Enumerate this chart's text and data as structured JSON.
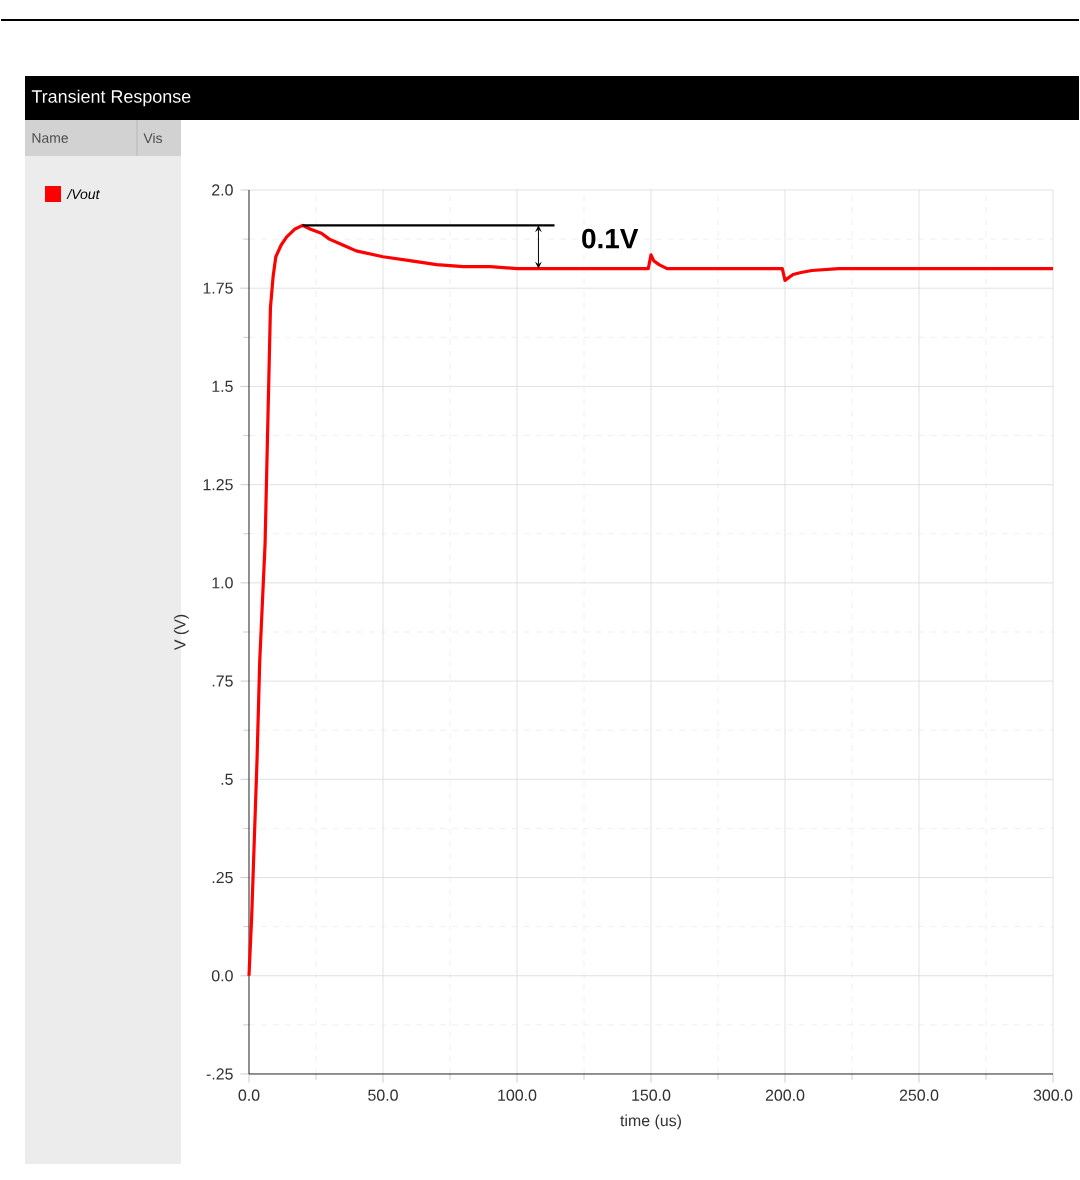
{
  "chart_data": {
    "type": "line",
    "title": "Transient Response",
    "xlabel": "time (us)",
    "ylabel": "V (V)",
    "annotations": [
      "Name",
      "Vis",
      "0.1V"
    ],
    "series": [
      {
        "name": "/Vout",
        "color": "#ff0000",
        "x": [
          0,
          1,
          2,
          3,
          4,
          5,
          6,
          7,
          8,
          9,
          10,
          12,
          14,
          17,
          20,
          23,
          27,
          30,
          35,
          40,
          50,
          60,
          70,
          80,
          90,
          100,
          110,
          120,
          130,
          140,
          149,
          150,
          151,
          153,
          156,
          160,
          170,
          180,
          190,
          199,
          200,
          201,
          203,
          206,
          210,
          220,
          250,
          280,
          300
        ],
        "values": [
          0,
          0.15,
          0.35,
          0.55,
          0.8,
          0.95,
          1.1,
          1.4,
          1.7,
          1.78,
          1.83,
          1.86,
          1.88,
          1.9,
          1.91,
          1.9,
          1.89,
          1.875,
          1.86,
          1.845,
          1.83,
          1.82,
          1.81,
          1.805,
          1.805,
          1.8,
          1.8,
          1.8,
          1.8,
          1.8,
          1.8,
          1.835,
          1.82,
          1.81,
          1.8,
          1.8,
          1.8,
          1.8,
          1.8,
          1.8,
          1.77,
          1.775,
          1.785,
          1.79,
          1.795,
          1.8,
          1.8,
          1.8,
          1.8
        ]
      },
      {
        "type": "line",
        "color": "#000000",
        "x": [
          20,
          114
        ],
        "values": [
          1.91,
          1.91
        ]
      }
    ],
    "xlim": [
      0,
      300
    ],
    "ylim": [
      -0.25,
      2.0
    ],
    "xticks": [
      {
        "value": 0,
        "label": "0.0"
      },
      {
        "value": 50,
        "label": "50.0"
      },
      {
        "value": 100,
        "label": "100.0"
      },
      {
        "value": 150,
        "label": "150.0"
      },
      {
        "value": 200,
        "label": "200.0"
      },
      {
        "value": 250,
        "label": "250.0"
      },
      {
        "value": 300,
        "label": "300.0"
      }
    ],
    "yticks": [
      {
        "value": -0.25,
        "label": "-.25"
      },
      {
        "value": 0,
        "label": "0.0"
      },
      {
        "value": 0.25,
        "label": ".25"
      },
      {
        "value": 0.5,
        "label": ".5"
      },
      {
        "value": 0.75,
        "label": ".75"
      },
      {
        "value": 1.0,
        "label": "1.0"
      },
      {
        "value": 1.25,
        "label": "1.25"
      },
      {
        "value": 1.5,
        "label": "1.5"
      },
      {
        "value": 1.75,
        "label": "1.75"
      },
      {
        "value": 2.0,
        "label": "2.0"
      }
    ],
    "grid": true,
    "legend": "left",
    "marker": "none",
    "line_style": "solid"
  }
}
